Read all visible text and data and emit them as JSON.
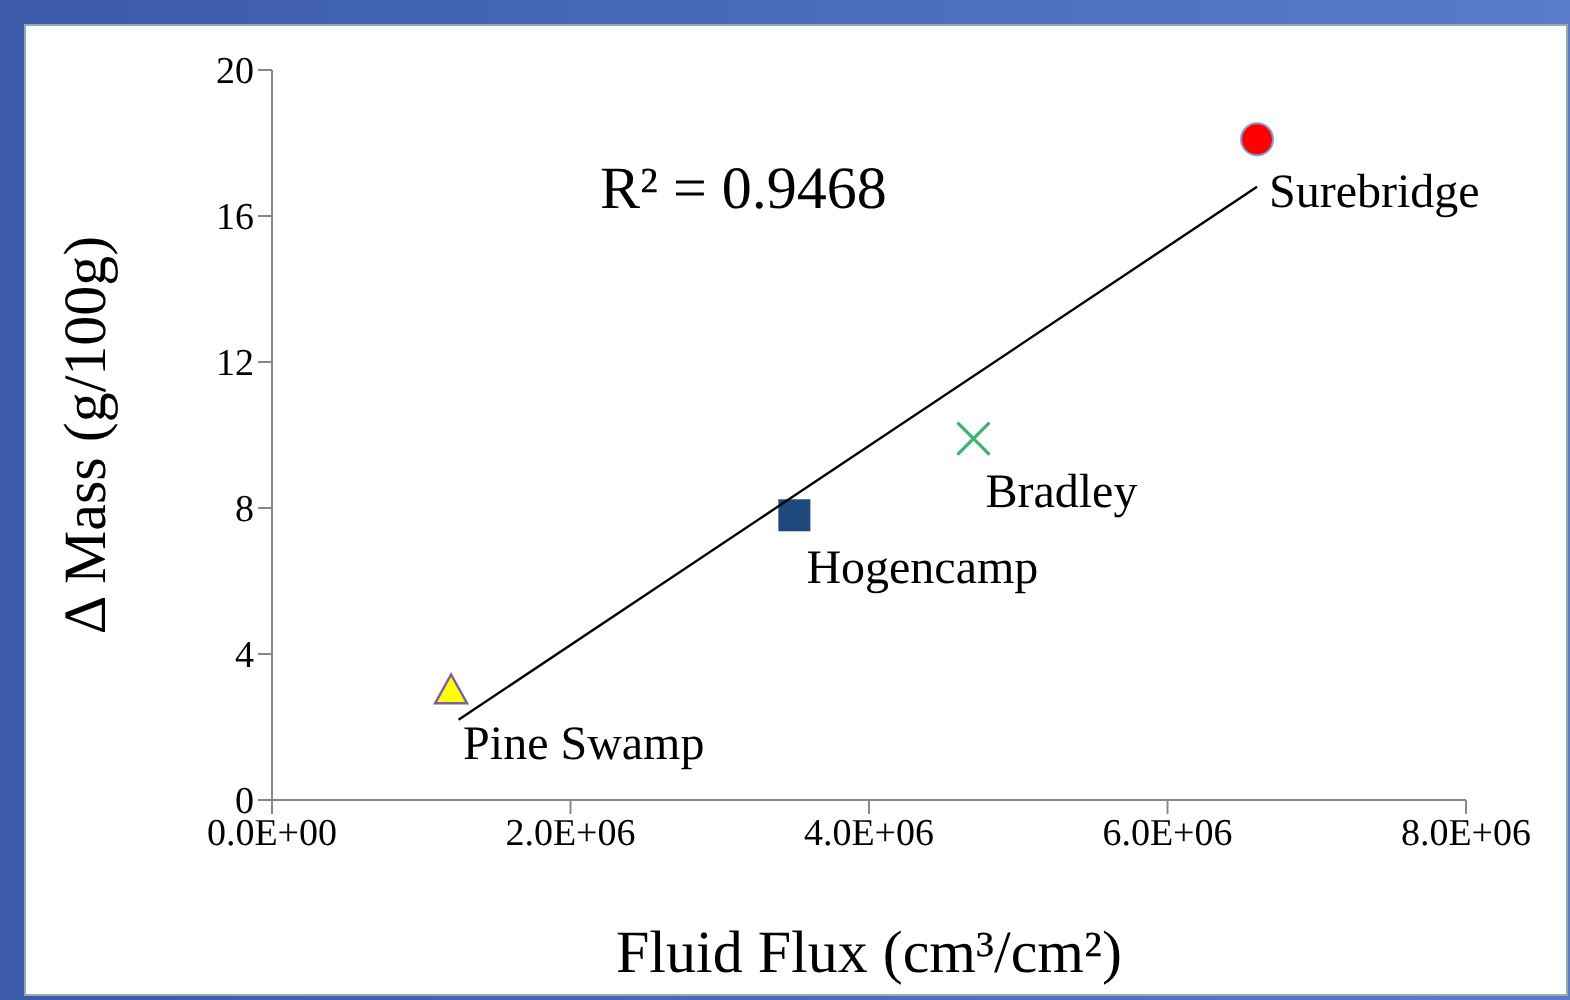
{
  "chart_data": {
    "type": "scatter",
    "xlabel": "Fluid Flux (cm³/cm²)",
    "ylabel": "Δ Mass (g/100g)",
    "annotations": [
      "R² = 0.9468"
    ],
    "xlim": [
      0,
      8000000
    ],
    "xticks": [
      {
        "value": 0,
        "label": "0.0E+00"
      },
      {
        "value": 2000000,
        "label": "2.0E+06"
      },
      {
        "value": 4000000,
        "label": "4.0E+06"
      },
      {
        "value": 6000000,
        "label": "6.0E+06"
      },
      {
        "value": 8000000,
        "label": "8.0E+06"
      }
    ],
    "ylim": [
      0,
      20
    ],
    "yticks": [
      0,
      4,
      8,
      12,
      16,
      20
    ],
    "series": [
      {
        "name": "Pine Swamp",
        "color": "#ffff00",
        "marker": "triangle",
        "x": [
          1200000
        ],
        "values": [
          3.0
        ]
      },
      {
        "name": "Hogencamp",
        "color": "#1f497d",
        "marker": "square",
        "x": [
          3500000
        ],
        "values": [
          7.8
        ]
      },
      {
        "name": "Bradley",
        "color": "#3cb371",
        "marker": "cross",
        "x": [
          4700000
        ],
        "values": [
          9.9
        ]
      },
      {
        "name": "Surebridge",
        "color": "#ff0000",
        "marker": "circle",
        "x": [
          6600000
        ],
        "values": [
          18.1
        ]
      },
      {
        "type": "line",
        "color": "#000000",
        "marker": "none",
        "x": [
          1250000,
          6600000
        ],
        "values": [
          2.2,
          16.8
        ]
      }
    ]
  }
}
